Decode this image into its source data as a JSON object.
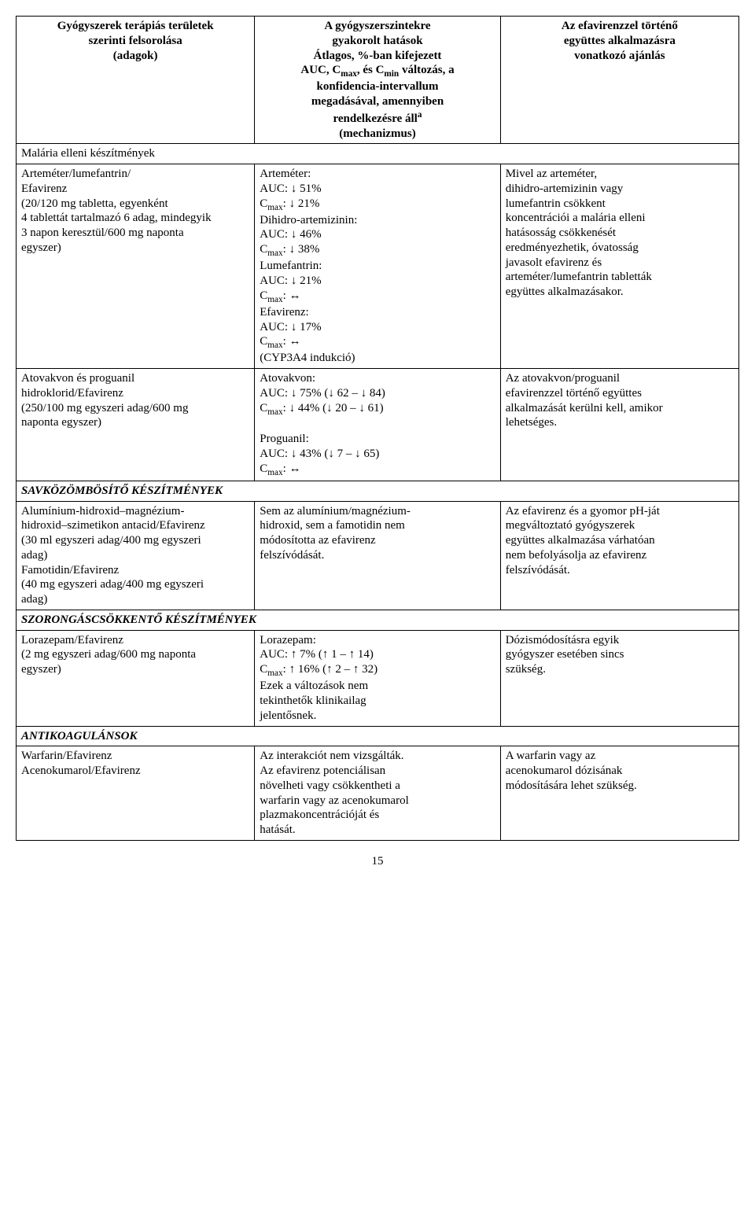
{
  "header": {
    "col1": "Gyógyszerek terápiás területek\nszerinti felsorolása\n(adagok)",
    "col2": "A gyógyszerszintekre\ngyakorolt hatások\nÁtlagos, %-ban kifejezett\nAUC, C",
    "col2_sub1": "max",
    "col2_cont1": ", és C",
    "col2_sub2": "min",
    "col2_cont2": " változás, a\nkonfidencia-intervallum\nmegadásával, amennyiben\nrendelkezésre áll",
    "col2_sup": "a",
    "col2_cont3": "\n(mechanizmus)",
    "col3": "Az efavirenzzel történő\negyüttes alkalmazásra\nvonatkozó ajánlás"
  },
  "section_malaria": "Malária elleni készítmények",
  "r1": {
    "c1": "Arteméter/lumefantrin/\nEfavirenz\n(20/120 mg tabletta, egyenként\n4 tablettát tartalmazó 6 adag, mindegyik\n3 napon keresztül/600 mg naponta\negyszer)",
    "c2_a": "Arteméter:\nAUC: ↓ 51%\nC",
    "c2_a_sub": "max",
    "c2_a2": ": ↓ 21%\nDihidro-artemizinin:\nAUC: ↓ 46%\nC",
    "c2_a_sub2": "max",
    "c2_a3": ": ↓ 38%\nLumefantrin:\nAUC: ↓ 21%\nC",
    "c2_a_sub3": "max",
    "c2_a4": ": ↔\nEfavirenz:\nAUC: ↓ 17%\nC",
    "c2_a_sub4": "max",
    "c2_a5": ": ↔\n(CYP3A4 indukció)",
    "c3": "Mivel az arteméter,\ndihidro-artemizinin vagy\nlumefantrin csökkent\nkoncentrációi a malária elleni\nhatásosság csökkenését\neredményezhetik, óvatosság\njavasolt efavirenz és\narteméter/lumefantrin tabletták\negyüttes alkalmazásakor."
  },
  "r2": {
    "c1": "Atovakvon és proguanil\nhidroklorid/Efavirenz\n(250/100 mg egyszeri adag/600 mg\nnaponta egyszer)",
    "c2_a": "Atovakvon:\nAUC: ↓ 75% (↓ 62 – ↓ 84)\nC",
    "c2_sub1": "max",
    "c2_b": ": ↓ 44% (↓ 20 – ↓ 61)\n\nProguanil:\nAUC: ↓ 43% (↓ 7 – ↓ 65)\nC",
    "c2_sub2": "max",
    "c2_c": ": ↔",
    "c3": "Az atovakvon/proguanil\nefavirenzzel történő együttes\nalkalmazását kerülni kell, amikor\nlehetséges."
  },
  "section_sav": "SAVKÖZÖMBÖSÍTŐ KÉSZÍTMÉNYEK",
  "r3": {
    "c1": "Alumínium-hidroxid–magnézium-\nhidroxid–szimetikon antacid/Efavirenz\n(30 ml egyszeri adag/400 mg egyszeri\nadag)\nFamotidin/Efavirenz\n(40 mg egyszeri adag/400 mg egyszeri\nadag)",
    "c2": "Sem az alumínium/magnézium-\nhidroxid, sem a famotidin nem\nmódosította az efavirenz\nfelszívódását.",
    "c3": "Az efavirenz és a gyomor pH-ját\nmegváltoztató gyógyszerek\negyüttes alkalmazása várhatóan\nnem befolyásolja az efavirenz\nfelszívódását."
  },
  "section_szorong": "SZORONGÁSCSÖKKENTŐ KÉSZÍTMÉNYEK",
  "r4": {
    "c1": "Lorazepam/Efavirenz\n(2 mg egyszeri adag/600 mg naponta\negyszer)",
    "c2_a": "Lorazepam:\nAUC: ↑ 7% (↑ 1 – ↑ 14)\nC",
    "c2_sub": "max",
    "c2_b": ": ↑ 16% (↑ 2 – ↑ 32)\nEzek a változások nem\ntekinthetők klinikailag\njelentősnek.",
    "c3": "Dózismódosításra egyik\ngyógyszer esetében sincs\nszükség."
  },
  "section_antikoag": "ANTIKOAGULÁNSOK",
  "r5": {
    "c1": "Warfarin/Efavirenz\nAcenokumarol/Efavirenz",
    "c2": "Az interakciót nem vizsgálták.\nAz efavirenz potenciálisan\nnövelheti vagy csökkentheti a\nwarfarin vagy az acenokumarol\nplazmakoncentrációját és\nhatását.",
    "c3": "A warfarin vagy az\nacenokumarol dózisának\nmódosítására lehet szükség."
  },
  "page_number": "15"
}
